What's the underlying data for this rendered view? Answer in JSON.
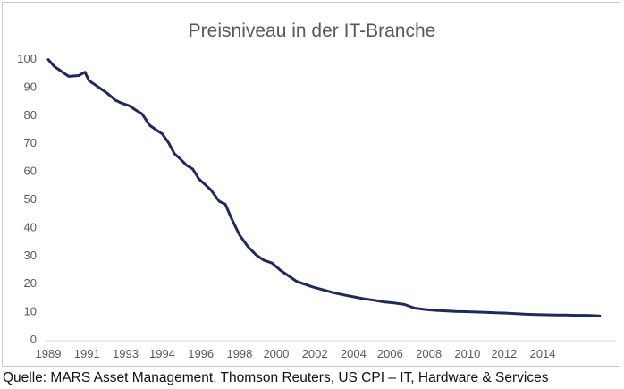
{
  "chart_data": {
    "type": "line",
    "title": "Preisniveau in der IT-Branche",
    "xlabel": "",
    "ylabel": "",
    "xlim": [
      1989,
      2016.9
    ],
    "ylim": [
      0,
      100
    ],
    "yticks": [
      0,
      10,
      20,
      30,
      40,
      50,
      60,
      70,
      80,
      90,
      100
    ],
    "xtick_labels": [
      "1989",
      "1991",
      "1993",
      "1994",
      "1996",
      "1998",
      "2000",
      "2002",
      "2004",
      "2006",
      "2008",
      "2010",
      "2012",
      "2014"
    ],
    "xtick_positions": [
      1989,
      1990.9,
      1992.8,
      1994.6,
      1996.5,
      1998.4,
      2000.2,
      2002.1,
      2004.0,
      2005.8,
      2007.7,
      2009.6,
      2011.4,
      2013.3
    ],
    "grid": false,
    "legend": "none",
    "series": [
      {
        "color": "#1f2a5a",
        "x": [
          1989.0,
          1989.3,
          1989.6,
          1990.0,
          1990.5,
          1990.8,
          1991.0,
          1991.3,
          1991.6,
          1991.9,
          1992.3,
          1992.6,
          1993.0,
          1993.3,
          1993.6,
          1994.0,
          1994.3,
          1994.6,
          1994.9,
          1995.2,
          1995.5,
          1995.8,
          1996.1,
          1996.4,
          1996.7,
          1997.0,
          1997.2,
          1997.4,
          1997.7,
          1998.0,
          1998.4,
          1998.8,
          1999.2,
          1999.6,
          2000.0,
          2000.4,
          2000.8,
          2001.2,
          2001.6,
          2002.0,
          2002.5,
          2003.0,
          2003.5,
          2004.0,
          2004.5,
          2005.0,
          2005.5,
          2006.0,
          2006.5,
          2007.0,
          2007.5,
          2008.0,
          2008.5,
          2009.0,
          2009.5,
          2010.0,
          2010.5,
          2011.0,
          2011.5,
          2012.0,
          2012.5,
          2013.0,
          2013.5,
          2014.0,
          2014.5,
          2015.0,
          2015.5,
          2016.1
        ],
        "values": [
          99.5,
          97,
          95.5,
          93.5,
          93.8,
          95,
          92,
          90.5,
          89,
          87.5,
          85,
          84,
          83,
          81.5,
          80.2,
          76,
          74.5,
          73,
          70,
          66,
          64,
          61.8,
          60.5,
          57,
          55,
          53,
          51,
          49,
          48,
          43,
          37,
          33,
          30,
          28,
          27,
          24.5,
          22.5,
          20.5,
          19.5,
          18.5,
          17.5,
          16.5,
          15.7,
          15,
          14.3,
          13.8,
          13.2,
          12.8,
          12.3,
          11,
          10.5,
          10.2,
          10.0,
          9.8,
          9.7,
          9.6,
          9.5,
          9.3,
          9.2,
          9.0,
          8.8,
          8.7,
          8.6,
          8.5,
          8.5,
          8.4,
          8.4,
          8.2
        ]
      }
    ]
  },
  "footer": {
    "source": "Quelle: MARS Asset Management, Thomson Reuters, US CPI – IT, Hardware & Services"
  }
}
